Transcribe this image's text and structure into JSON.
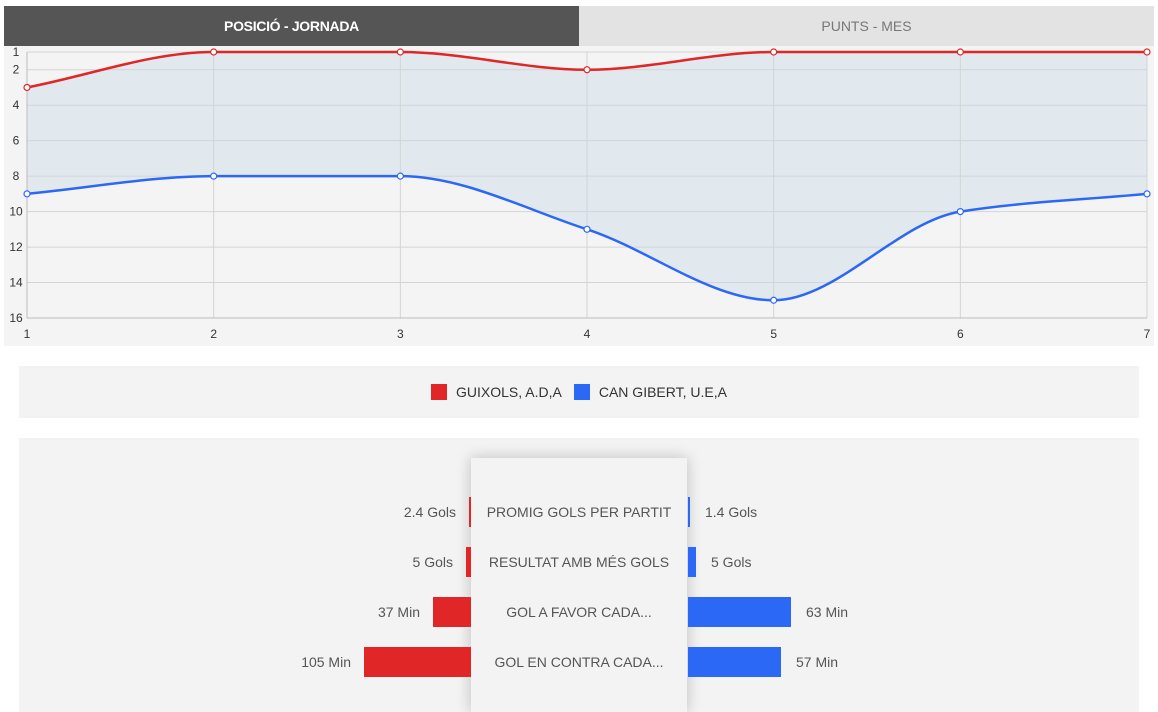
{
  "tabs": [
    {
      "label": "POSICIÓ - JORNADA",
      "active": true
    },
    {
      "label": "PUNTS - MES",
      "active": false
    }
  ],
  "chart_data": {
    "type": "line",
    "x": [
      1,
      2,
      3,
      4,
      5,
      6,
      7
    ],
    "series": [
      {
        "name": "GUIXOLS, A.D,A",
        "color": "#e02626",
        "values": [
          3,
          1,
          1,
          2,
          1,
          1,
          1
        ]
      },
      {
        "name": "CAN GIBERT, U.E,A",
        "color": "#2c68f6",
        "values": [
          9,
          8,
          8,
          11,
          15,
          10,
          9
        ]
      }
    ],
    "y_ticks": [
      1,
      2,
      4,
      6,
      8,
      10,
      12,
      14,
      16
    ],
    "ylim": [
      1,
      16
    ],
    "y_inverted": true,
    "xlim": [
      1,
      7
    ],
    "grid": true,
    "fill_between": true,
    "legend_position": "bottom"
  },
  "legend": [
    {
      "label": "GUIXOLS, A.D,A",
      "color": "#e02626"
    },
    {
      "label": "CAN GIBERT, U.E,A",
      "color": "#2c68f6"
    }
  ],
  "stats": [
    {
      "label": "PROMIG GOLS PER PARTIT",
      "left": {
        "text": "2.4 Gols",
        "value": 2.4
      },
      "right": {
        "text": "1.4 Gols",
        "value": 1.4
      }
    },
    {
      "label": "RESULTAT AMB MÉS GOLS",
      "left": {
        "text": "5 Gols",
        "value": 5
      },
      "right": {
        "text": "5 Gols",
        "value": 5
      }
    },
    {
      "label": "GOL A FAVOR CADA...",
      "left": {
        "text": "37 Min",
        "value": 37
      },
      "right": {
        "text": "63 Min",
        "value": 63
      }
    },
    {
      "label": "GOL EN CONTRA CADA...",
      "left": {
        "text": "105 Min",
        "value": 105
      },
      "right": {
        "text": "57 Min",
        "value": 57
      }
    }
  ]
}
